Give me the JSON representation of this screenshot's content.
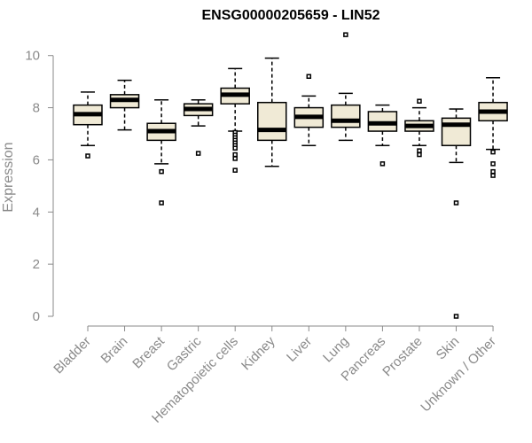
{
  "chart_data": {
    "type": "boxplot",
    "title": "ENSG00000205659 - LIN52",
    "xlabel": "",
    "ylabel": "Expression",
    "ylim": [
      0,
      10.5
    ],
    "yticks": [
      0,
      2,
      4,
      6,
      8,
      10
    ],
    "grid": false,
    "categories": [
      "Bladder",
      "Brain",
      "Breast",
      "Gastric",
      "Hematopoietic cells",
      "Kidney",
      "Liver",
      "Lung",
      "Pancreas",
      "Prostate",
      "Skin",
      "Unknown / Other"
    ],
    "boxes": [
      {
        "category": "Bladder",
        "min": 6.55,
        "q1": 7.35,
        "median": 7.75,
        "q3": 8.1,
        "max": 8.6,
        "outliers": [
          6.15
        ]
      },
      {
        "category": "Brain",
        "min": 7.15,
        "q1": 8.0,
        "median": 8.3,
        "q3": 8.5,
        "max": 9.05,
        "outliers": []
      },
      {
        "category": "Breast",
        "min": 5.85,
        "q1": 6.75,
        "median": 7.1,
        "q3": 7.4,
        "max": 8.3,
        "outliers": [
          5.55,
          4.35
        ]
      },
      {
        "category": "Gastric",
        "min": 7.3,
        "q1": 7.7,
        "median": 7.95,
        "q3": 8.15,
        "max": 8.3,
        "outliers": [
          6.25
        ]
      },
      {
        "category": "Hematopoietic cells",
        "min": 7.1,
        "q1": 8.15,
        "median": 8.5,
        "q3": 8.75,
        "max": 9.5,
        "outliers": [
          7.05,
          6.95,
          6.85,
          6.75,
          6.65,
          6.55,
          6.45,
          6.2,
          6.05,
          5.6
        ]
      },
      {
        "category": "Kidney",
        "min": 5.75,
        "q1": 6.75,
        "median": 7.15,
        "q3": 8.2,
        "max": 9.9,
        "outliers": []
      },
      {
        "category": "Liver",
        "min": 6.55,
        "q1": 7.25,
        "median": 7.65,
        "q3": 8.0,
        "max": 8.45,
        "outliers": [
          9.2
        ]
      },
      {
        "category": "Lung",
        "min": 6.75,
        "q1": 7.25,
        "median": 7.5,
        "q3": 8.1,
        "max": 8.55,
        "outliers": [
          10.8
        ]
      },
      {
        "category": "Pancreas",
        "min": 6.55,
        "q1": 7.1,
        "median": 7.4,
        "q3": 7.85,
        "max": 8.1,
        "outliers": [
          5.85
        ]
      },
      {
        "category": "Prostate",
        "min": 6.55,
        "q1": 7.1,
        "median": 7.3,
        "q3": 7.5,
        "max": 8.0,
        "outliers": [
          8.25,
          6.35,
          6.2
        ]
      },
      {
        "category": "Skin",
        "min": 5.9,
        "q1": 6.55,
        "median": 7.35,
        "q3": 7.6,
        "max": 7.95,
        "outliers": [
          4.35,
          0.0
        ]
      },
      {
        "category": "Unknown / Other",
        "min": 6.4,
        "q1": 7.5,
        "median": 7.85,
        "q3": 8.2,
        "max": 9.15,
        "outliers": [
          6.3,
          5.85,
          5.55,
          5.4
        ]
      }
    ],
    "colors": {
      "box_fill": "#f0ead6",
      "box_stroke": "#000000",
      "axis": "#8a8a8a"
    }
  }
}
